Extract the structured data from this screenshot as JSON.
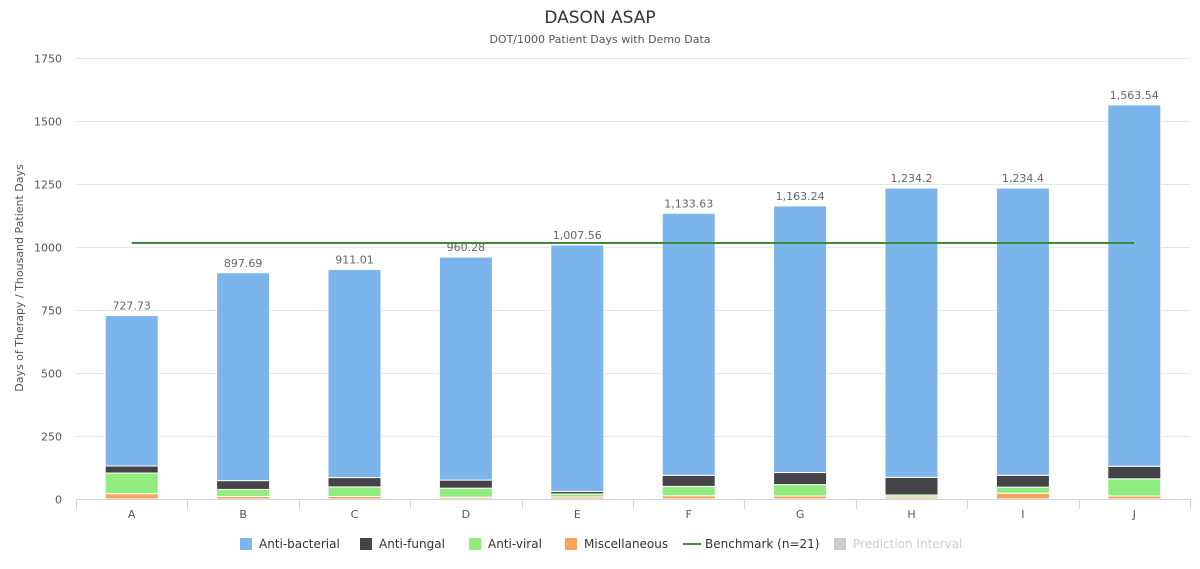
{
  "chart_data": {
    "type": "bar",
    "stacked": true,
    "title": "DASON ASAP",
    "subtitle": "DOT/1000 Patient Days with Demo Data",
    "ylabel": "Days of Therapy / Thousand Patient Days",
    "xlabel": "",
    "ylim": [
      0,
      1750
    ],
    "yticks": [
      0,
      250,
      500,
      750,
      1000,
      1250,
      1500,
      1750
    ],
    "ytick_labels": [
      "0",
      "250",
      "500",
      "750",
      "1000",
      "1250",
      "1500",
      "1750"
    ],
    "grid": true,
    "legend_position": "bottom-center",
    "categories": [
      "A",
      "B",
      "C",
      "D",
      "E",
      "F",
      "G",
      "H",
      "I",
      "J"
    ],
    "series": [
      {
        "name": "Anti-bacterial",
        "color": "#7cb5ec",
        "values": [
          597,
          825,
          826,
          885,
          978,
          1040,
          1058,
          1148,
          1140,
          1434
        ]
      },
      {
        "name": "Anti-fungal",
        "color": "#434348",
        "values": [
          28,
          35,
          37,
          32,
          10,
          44,
          48,
          70,
          47,
          50
        ]
      },
      {
        "name": "Anti-viral",
        "color": "#90ed7d",
        "values": [
          82,
          28,
          38,
          36,
          12,
          37,
          45,
          8,
          24,
          68
        ]
      },
      {
        "name": "Miscellaneous",
        "color": "#f7a35c",
        "values": [
          21,
          10,
          10,
          7,
          8,
          13,
          12,
          8,
          23,
          12
        ]
      }
    ],
    "totals_labels": [
      "727.73",
      "897.69",
      "911.01",
      "960.28",
      "1,007.56",
      "1,133.63",
      "1,163.24",
      "1,234.2",
      "1,234.4",
      "1,563.54"
    ],
    "totals": [
      727.73,
      897.69,
      911.01,
      960.28,
      1007.56,
      1133.63,
      1163.24,
      1234.2,
      1234.4,
      1563.54
    ],
    "benchmark": {
      "name": "Benchmark (n=21)",
      "color": "#3c8a3c",
      "value": 1016
    },
    "prediction_interval": {
      "name": "Prediction Interval",
      "color": "#cccccc",
      "enabled": false
    }
  }
}
